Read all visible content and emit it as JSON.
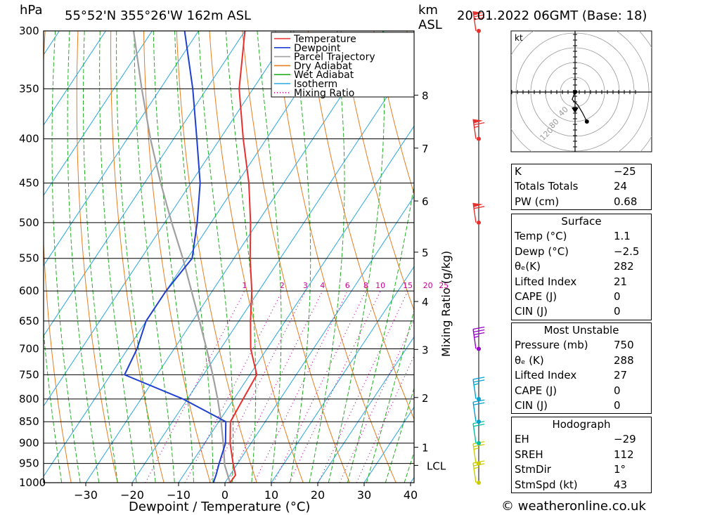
{
  "header": {
    "left_unit": "hPa",
    "location": "55°52'N  355°26'W  162m  ASL",
    "km_label": "km",
    "asl_label": "ASL",
    "datetime": "20.01.2022  06GMT  (Base: 18)"
  },
  "legend": [
    {
      "label": "Temperature",
      "color": "#e8312f",
      "style": "solid"
    },
    {
      "label": "Dewpoint",
      "color": "#1f3fd0",
      "style": "solid"
    },
    {
      "label": "Parcel Trajectory",
      "color": "#a0a0a0",
      "style": "solid"
    },
    {
      "label": "Dry Adiabat",
      "color": "#e87d1e",
      "style": "solid"
    },
    {
      "label": "Wet Adiabat",
      "color": "#22b022",
      "style": "solid"
    },
    {
      "label": "Isotherm",
      "color": "#2aa7e0",
      "style": "solid"
    },
    {
      "label": "Mixing Ratio",
      "color": "#cc0099",
      "style": "dotted"
    }
  ],
  "chart_data": {
    "type": "line",
    "subtype": "skew-T log-P diagram",
    "xlabel": "Dewpoint / Temperature (°C)",
    "ylabel": "hPa",
    "right_label_km": "km ASL",
    "mixing_ratio_axis_label": "Mixing Ratio (g/kg)",
    "x_ticks": [
      -30,
      -20,
      -10,
      0,
      10,
      20,
      30,
      40
    ],
    "x_tick_labels": [
      "−30",
      "−20",
      "−10",
      "0",
      "10",
      "20",
      "30",
      "40"
    ],
    "pressure_levels": [
      300,
      350,
      400,
      450,
      500,
      550,
      600,
      650,
      700,
      750,
      800,
      850,
      900,
      950,
      1000
    ],
    "km_ticks": [
      {
        "km": 1,
        "p": 910
      },
      {
        "km": 2,
        "p": 797
      },
      {
        "km": 3,
        "p": 701
      },
      {
        "km": 4,
        "p": 617
      },
      {
        "km": 5,
        "p": 541
      },
      {
        "km": 6,
        "p": 472
      },
      {
        "km": 7,
        "p": 410
      },
      {
        "km": 8,
        "p": 356
      }
    ],
    "lcl": {
      "label": "LCL",
      "p": 955
    },
    "mixing_ratio_labels": [
      "1",
      "2",
      "3",
      "4",
      "6",
      "8",
      "10",
      "15",
      "20",
      "25"
    ],
    "mixing_ratio_values": [
      1,
      2,
      3,
      4,
      6,
      8,
      10,
      15,
      20,
      25
    ],
    "series": [
      {
        "name": "Temperature",
        "points": [
          [
            1000,
            1.1
          ],
          [
            980,
            1.2
          ],
          [
            950,
            -1.0
          ],
          [
            900,
            -4.5
          ],
          [
            850,
            -7.5
          ],
          [
            800,
            -8.0
          ],
          [
            750,
            -8.5
          ],
          [
            700,
            -13.5
          ],
          [
            650,
            -17.5
          ],
          [
            600,
            -21.5
          ],
          [
            550,
            -26.5
          ],
          [
            500,
            -31.5
          ],
          [
            450,
            -37.5
          ],
          [
            400,
            -45.0
          ],
          [
            350,
            -53.0
          ],
          [
            300,
            -60.0
          ]
        ]
      },
      {
        "name": "Dewpoint",
        "points": [
          [
            1000,
            -2.5
          ],
          [
            980,
            -3.0
          ],
          [
            950,
            -4.0
          ],
          [
            900,
            -5.5
          ],
          [
            850,
            -8.5
          ],
          [
            800,
            -21.0
          ],
          [
            750,
            -37.0
          ],
          [
            700,
            -38.0
          ],
          [
            650,
            -40.0
          ],
          [
            600,
            -40.0
          ],
          [
            550,
            -39.0
          ],
          [
            500,
            -43.0
          ],
          [
            450,
            -48.0
          ],
          [
            400,
            -55.0
          ],
          [
            350,
            -63.0
          ],
          [
            300,
            -73.0
          ]
        ]
      },
      {
        "name": "Parcel Trajectory",
        "points": [
          [
            1000,
            1.1
          ],
          [
            955,
            -2.5
          ],
          [
            900,
            -6.0
          ],
          [
            850,
            -9.5
          ],
          [
            800,
            -13.5
          ],
          [
            750,
            -18.0
          ],
          [
            700,
            -23.0
          ],
          [
            650,
            -28.5
          ],
          [
            600,
            -34.5
          ],
          [
            550,
            -41.0
          ],
          [
            500,
            -48.5
          ],
          [
            450,
            -56.5
          ],
          [
            400,
            -65.0
          ],
          [
            350,
            -74.0
          ],
          [
            300,
            -84.0
          ]
        ]
      }
    ],
    "wind_barbs": [
      {
        "p": 1000,
        "speed_kt": 25,
        "color": "#cccc00"
      },
      {
        "p": 950,
        "speed_kt": 25,
        "color": "#cccc00"
      },
      {
        "p": 900,
        "speed_kt": 20,
        "color": "#00c0a0"
      },
      {
        "p": 850,
        "speed_kt": 20,
        "color": "#00a0d0"
      },
      {
        "p": 800,
        "speed_kt": 25,
        "color": "#00a0d0"
      },
      {
        "p": 700,
        "speed_kt": 35,
        "color": "#9900cc"
      },
      {
        "p": 500,
        "speed_kt": 60,
        "color": "#e8312f"
      },
      {
        "p": 400,
        "speed_kt": 65,
        "color": "#e8312f"
      },
      {
        "p": 300,
        "speed_kt": 70,
        "color": "#e8312f"
      }
    ]
  },
  "hodograph": {
    "unit_label": "kt",
    "ring_labels": [
      "40",
      "80",
      "120"
    ],
    "points_kt": [
      [
        0,
        0
      ],
      [
        -4,
        -10
      ],
      [
        4,
        -18
      ],
      [
        10,
        -28
      ],
      [
        16,
        -40
      ]
    ]
  },
  "indices": {
    "rows": [
      {
        "label": "K",
        "value": "−25"
      },
      {
        "label": "Totals Totals",
        "value": "24"
      },
      {
        "label": "PW (cm)",
        "value": "0.68"
      }
    ]
  },
  "surface": {
    "title": "Surface",
    "rows": [
      {
        "label": "Temp (°C)",
        "value": "1.1"
      },
      {
        "label": "Dewp (°C)",
        "value": "−2.5"
      },
      {
        "label": "θₑ(K)",
        "value": "282"
      },
      {
        "label": "Lifted Index",
        "value": "21"
      },
      {
        "label": "CAPE (J)",
        "value": "0"
      },
      {
        "label": "CIN (J)",
        "value": "0"
      }
    ]
  },
  "most_unstable": {
    "title": "Most Unstable",
    "rows": [
      {
        "label": "Pressure (mb)",
        "value": "750"
      },
      {
        "label": "θₑ (K)",
        "value": "288"
      },
      {
        "label": "Lifted Index",
        "value": "27"
      },
      {
        "label": "CAPE (J)",
        "value": "0"
      },
      {
        "label": "CIN (J)",
        "value": "0"
      }
    ]
  },
  "hodograph_stats": {
    "title": "Hodograph",
    "rows": [
      {
        "label": "EH",
        "value": "−29"
      },
      {
        "label": "SREH",
        "value": "112"
      },
      {
        "label": "StmDir",
        "value": "1°"
      },
      {
        "label": "StmSpd (kt)",
        "value": "43"
      }
    ]
  },
  "footer": {
    "credit": "© weatheronline.co.uk"
  },
  "colors": {
    "temperature": "#e8312f",
    "dewpoint": "#1f3fd0",
    "parcel": "#a0a0a0",
    "dry_adiabat": "#e87d1e",
    "wet_adiabat": "#22b022",
    "isotherm": "#2aa7e0",
    "mixing_ratio": "#cc0099"
  }
}
